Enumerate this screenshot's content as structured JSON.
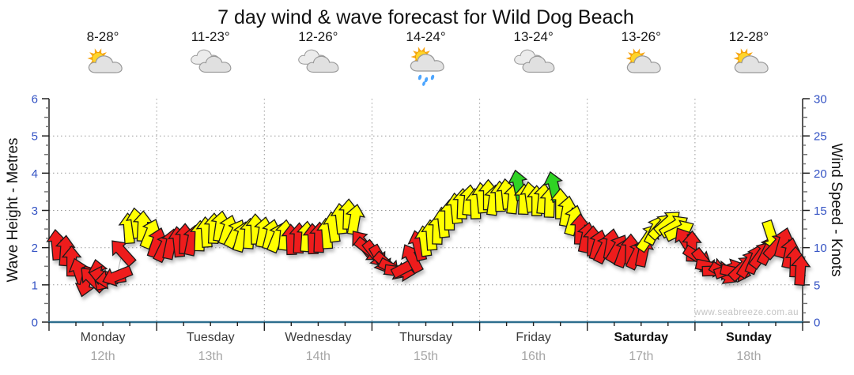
{
  "page": {
    "title": "7 day wind & wave forecast for Wild Dog Beach",
    "watermark": "www.seabreeze.com.au"
  },
  "days": [
    {
      "name": "Monday",
      "date": "12th",
      "temp": "8-28°",
      "icon": "sun-cloud",
      "weekend": false
    },
    {
      "name": "Tuesday",
      "date": "13th",
      "temp": "11-23°",
      "icon": "clouds",
      "weekend": false
    },
    {
      "name": "Wednesday",
      "date": "14th",
      "temp": "12-26°",
      "icon": "clouds",
      "weekend": false
    },
    {
      "name": "Thursday",
      "date": "15th",
      "temp": "14-24°",
      "icon": "sun-cloud-rain",
      "weekend": false
    },
    {
      "name": "Friday",
      "date": "16th",
      "temp": "13-24°",
      "icon": "clouds",
      "weekend": false
    },
    {
      "name": "Saturday",
      "date": "17th",
      "temp": "13-26°",
      "icon": "sun-cloud",
      "weekend": true
    },
    {
      "name": "Sunday",
      "date": "18th",
      "temp": "12-28°",
      "icon": "sun-cloud",
      "weekend": true
    }
  ],
  "chart_data": {
    "type": "scatter",
    "title": "7 day wind & wave forecast for Wild Dog Beach",
    "y_left": {
      "label": "Wave Height - Metres",
      "min": 0,
      "max": 6,
      "ticks": [
        0,
        1,
        2,
        3,
        4,
        5,
        6
      ]
    },
    "y_right": {
      "label": "Wind Speed - Knots",
      "min": 0,
      "max": 30,
      "ticks": [
        0,
        5,
        10,
        15,
        20,
        25,
        30
      ]
    },
    "x_categories": [
      "Monday 12th",
      "Tuesday 13th",
      "Wednesday 14th",
      "Thursday 15th",
      "Friday 16th",
      "Saturday 17th",
      "Sunday 18th"
    ],
    "grid": {
      "horizontal_every_metre": true,
      "vertical_every_day": true,
      "style": "dotted"
    },
    "arrow_colors": {
      "r": "#ee1c1c",
      "y": "#ffff00",
      "g": "#2fd324"
    },
    "wind_arrows_format": "[day_fraction 0-7, wind_speed_knots, direction_deg_cw_from_up, color]",
    "wind_arrows": [
      [
        0.07,
        10.4,
        -5,
        "r"
      ],
      [
        0.15,
        9.6,
        4,
        "r"
      ],
      [
        0.21,
        8.2,
        0,
        "r"
      ],
      [
        0.28,
        6.6,
        -18,
        "r"
      ],
      [
        0.34,
        5.4,
        -165,
        "r"
      ],
      [
        0.4,
        5.8,
        -45,
        "r"
      ],
      [
        0.46,
        6.4,
        -12,
        "r"
      ],
      [
        0.51,
        6.2,
        -78,
        "r"
      ],
      [
        0.57,
        5.8,
        -98,
        "r"
      ],
      [
        0.63,
        6.2,
        -112,
        "r"
      ],
      [
        0.68,
        9.4,
        -42,
        "r"
      ],
      [
        0.74,
        12.6,
        -4,
        "y"
      ],
      [
        0.81,
        13.3,
        -8,
        "y"
      ],
      [
        0.87,
        12.9,
        3,
        "y"
      ],
      [
        0.94,
        11.9,
        22,
        "y"
      ],
      [
        1.0,
        10.7,
        18,
        "r"
      ],
      [
        1.07,
        10.1,
        26,
        "r"
      ],
      [
        1.13,
        10.5,
        12,
        "r"
      ],
      [
        1.2,
        10.8,
        -6,
        "r"
      ],
      [
        1.26,
        11.2,
        2,
        "r"
      ],
      [
        1.33,
        11.0,
        12,
        "r"
      ],
      [
        1.4,
        11.6,
        2,
        "y"
      ],
      [
        1.46,
        12.1,
        -4,
        "y"
      ],
      [
        1.53,
        12.6,
        2,
        "y"
      ],
      [
        1.59,
        12.9,
        8,
        "y"
      ],
      [
        1.66,
        12.4,
        18,
        "y"
      ],
      [
        1.73,
        11.9,
        28,
        "y"
      ],
      [
        1.79,
        11.5,
        16,
        "y"
      ],
      [
        1.86,
        11.9,
        4,
        "y"
      ],
      [
        1.92,
        12.5,
        -2,
        "y"
      ],
      [
        1.99,
        12.1,
        10,
        "y"
      ],
      [
        2.06,
        11.8,
        14,
        "y"
      ],
      [
        2.12,
        11.4,
        22,
        "y"
      ],
      [
        2.19,
        11.7,
        6,
        "y"
      ],
      [
        2.25,
        11.1,
        -2,
        "r"
      ],
      [
        2.32,
        11.3,
        2,
        "r"
      ],
      [
        2.39,
        11.5,
        4,
        "y"
      ],
      [
        2.45,
        11.2,
        -2,
        "r"
      ],
      [
        2.51,
        11.4,
        2,
        "r"
      ],
      [
        2.58,
        11.9,
        -4,
        "y"
      ],
      [
        2.64,
        12.8,
        -8,
        "y"
      ],
      [
        2.71,
        13.9,
        -6,
        "y"
      ],
      [
        2.78,
        14.5,
        2,
        "y"
      ],
      [
        2.84,
        13.8,
        10,
        "y"
      ],
      [
        2.91,
        10.6,
        -38,
        "r"
      ],
      [
        2.97,
        9.7,
        128,
        "r"
      ],
      [
        3.03,
        9.1,
        142,
        "r"
      ],
      [
        3.08,
        8.4,
        150,
        "r"
      ],
      [
        3.14,
        7.7,
        132,
        "r"
      ],
      [
        3.2,
        7.1,
        118,
        "r"
      ],
      [
        3.26,
        6.8,
        98,
        "r"
      ],
      [
        3.32,
        7.4,
        62,
        "r"
      ],
      [
        3.37,
        8.6,
        -28,
        "r"
      ],
      [
        3.43,
        10.3,
        -14,
        "r"
      ],
      [
        3.49,
        10.9,
        -8,
        "y"
      ],
      [
        3.55,
        11.7,
        -4,
        "y"
      ],
      [
        3.61,
        12.5,
        2,
        "y"
      ],
      [
        3.66,
        13.4,
        -6,
        "y"
      ],
      [
        3.72,
        14.4,
        0,
        "y"
      ],
      [
        3.78,
        15.3,
        -6,
        "y"
      ],
      [
        3.84,
        15.9,
        2,
        "y"
      ],
      [
        3.9,
        16.4,
        6,
        "y"
      ],
      [
        3.96,
        15.9,
        -2,
        "y"
      ],
      [
        4.02,
        16.7,
        -6,
        "y"
      ],
      [
        4.08,
        17.1,
        0,
        "y"
      ],
      [
        4.13,
        16.4,
        8,
        "y"
      ],
      [
        4.19,
        16.9,
        -2,
        "y"
      ],
      [
        4.25,
        17.2,
        -6,
        "y"
      ],
      [
        4.31,
        16.6,
        6,
        "y"
      ],
      [
        4.36,
        18.4,
        -12,
        "g"
      ],
      [
        4.41,
        16.5,
        2,
        "y"
      ],
      [
        4.47,
        16.8,
        -8,
        "y"
      ],
      [
        4.53,
        16.3,
        0,
        "y"
      ],
      [
        4.59,
        16.6,
        6,
        "y"
      ],
      [
        4.65,
        16.1,
        2,
        "y"
      ],
      [
        4.69,
        18.2,
        -14,
        "g"
      ],
      [
        4.75,
        15.9,
        0,
        "y"
      ],
      [
        4.81,
        14.9,
        10,
        "y"
      ],
      [
        4.87,
        13.7,
        16,
        "y"
      ],
      [
        4.93,
        12.5,
        2,
        "r"
      ],
      [
        4.99,
        11.4,
        12,
        "r"
      ],
      [
        5.05,
        10.9,
        2,
        "r"
      ],
      [
        5.1,
        10.4,
        16,
        "r"
      ],
      [
        5.16,
        9.9,
        26,
        "r"
      ],
      [
        5.22,
        10.5,
        10,
        "r"
      ],
      [
        5.28,
        9.9,
        30,
        "r"
      ],
      [
        5.34,
        9.4,
        20,
        "r"
      ],
      [
        5.4,
        9.8,
        2,
        "r"
      ],
      [
        5.46,
        9.1,
        26,
        "r"
      ],
      [
        5.52,
        9.5,
        12,
        "r"
      ],
      [
        5.57,
        11.4,
        34,
        "y"
      ],
      [
        5.63,
        12.4,
        26,
        "y"
      ],
      [
        5.69,
        12.9,
        42,
        "y"
      ],
      [
        5.75,
        13.4,
        48,
        "y"
      ],
      [
        5.81,
        12.9,
        58,
        "y"
      ],
      [
        5.86,
        12.3,
        64,
        "y"
      ],
      [
        5.91,
        10.9,
        -32,
        "r"
      ],
      [
        5.97,
        10.2,
        2,
        "r"
      ],
      [
        6.03,
        8.7,
        122,
        "r"
      ],
      [
        6.09,
        8.0,
        142,
        "r"
      ],
      [
        6.15,
        7.4,
        102,
        "r"
      ],
      [
        6.21,
        6.9,
        88,
        "r"
      ],
      [
        6.27,
        6.5,
        122,
        "r"
      ],
      [
        6.32,
        7.1,
        70,
        "r"
      ],
      [
        6.38,
        6.7,
        102,
        "r"
      ],
      [
        6.44,
        7.3,
        46,
        "r"
      ],
      [
        6.5,
        7.9,
        32,
        "r"
      ],
      [
        6.56,
        8.5,
        22,
        "r"
      ],
      [
        6.62,
        9.1,
        36,
        "r"
      ],
      [
        6.68,
        9.7,
        26,
        "r"
      ],
      [
        6.71,
        11.6,
        162,
        "y"
      ],
      [
        6.76,
        10.3,
        42,
        "r"
      ],
      [
        6.82,
        10.7,
        16,
        "r"
      ],
      [
        6.88,
        9.3,
        12,
        "r"
      ],
      [
        6.93,
        8.1,
        2,
        "r"
      ],
      [
        6.98,
        7.0,
        4,
        "r"
      ]
    ]
  }
}
